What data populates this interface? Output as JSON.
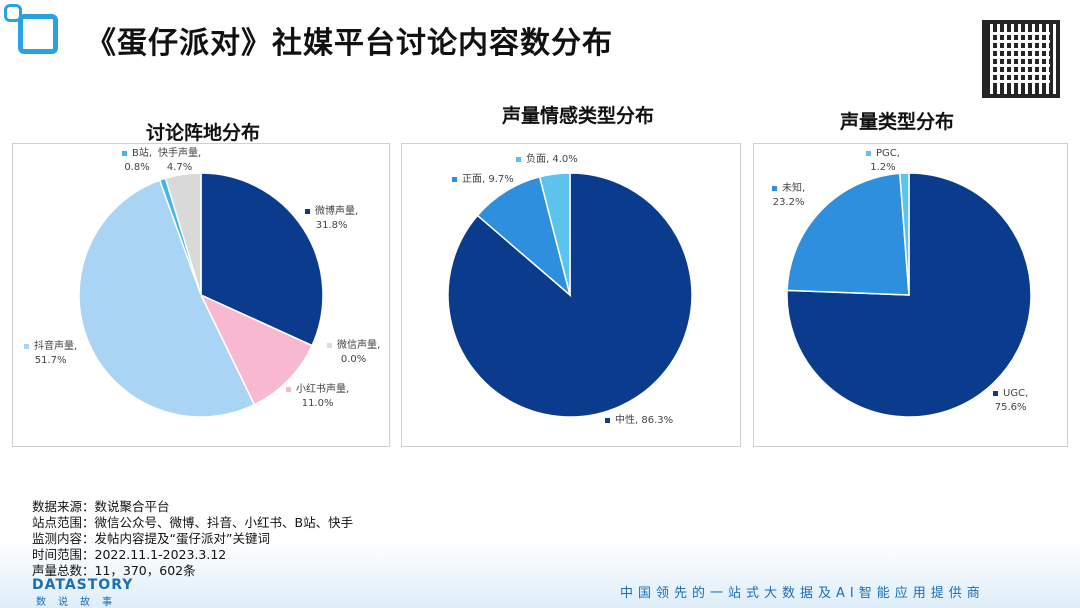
{
  "title": "《蛋仔派对》社媒平台讨论内容数分布",
  "chart_data": [
    {
      "type": "pie",
      "title": "讨论阵地分布",
      "slices": [
        {
          "label": "微博声量",
          "value": 31.8,
          "display": "31.8%",
          "color": "#0b3b8c"
        },
        {
          "label": "微信声量",
          "value": 0.0,
          "display": "0.0%",
          "color": "#bfbfbf"
        },
        {
          "label": "小红书声量",
          "value": 11.0,
          "display": "11.0%",
          "color": "#f8b9d0"
        },
        {
          "label": "抖音声量",
          "value": 51.7,
          "display": "51.7%",
          "color": "#a9d4f4"
        },
        {
          "label": "B站",
          "value": 0.8,
          "display": "0.8%",
          "color": "#45b4e6"
        },
        {
          "label": "快手声量",
          "value": 4.7,
          "display": "4.7%",
          "color": "#d9d9d9"
        }
      ]
    },
    {
      "type": "pie",
      "title": "声量情感类型分布",
      "slices": [
        {
          "label": "中性",
          "value": 86.3,
          "display": "86.3%",
          "color": "#0b3b8c"
        },
        {
          "label": "正面",
          "value": 9.7,
          "display": "9.7%",
          "color": "#2e8fde"
        },
        {
          "label": "负面",
          "value": 4.0,
          "display": "4.0%",
          "color": "#5cc3ee"
        }
      ]
    },
    {
      "type": "pie",
      "title": "声量类型分布",
      "slices": [
        {
          "label": "UGC",
          "value": 75.6,
          "display": "75.6%",
          "color": "#0b3b8c"
        },
        {
          "label": "未知",
          "value": 23.2,
          "display": "23.2%",
          "color": "#2e8fde"
        },
        {
          "label": "PGC",
          "value": 1.2,
          "display": "1.2%",
          "color": "#5cc3ee"
        }
      ]
    }
  ],
  "info": [
    "数据来源：数说聚合平台",
    "站点范围：微信公众号、微博、抖音、小红书、B站、快手",
    "监测内容：发帖内容提及“蛋仔派对”关键词",
    "时间范围：2022.11.1-2023.3.12",
    "声量总数：11，370，602条"
  ],
  "brand": "DATASTORY",
  "brand_sub": "数说故事",
  "slogan": "中国领先的一站式大数据及AI智能应用提供商"
}
